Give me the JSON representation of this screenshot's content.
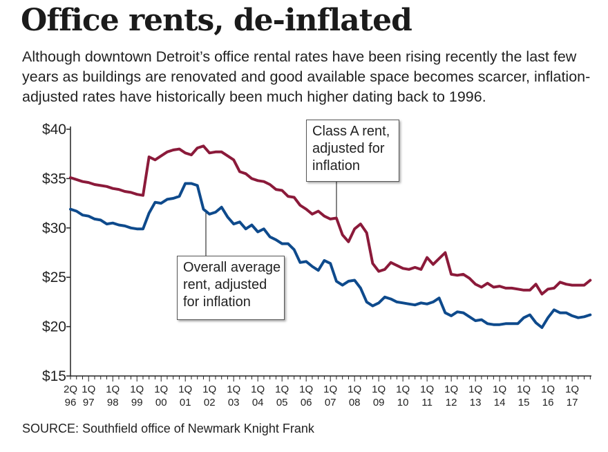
{
  "header": {
    "title": "Office rents, de-inflated",
    "subtitle": "Although downtown Detroit’s office rental rates have been rising recently the last few years as buildings are renovated and good available space becomes scarcer, inflation-adjusted rates have historically been much higher dating back to 1996."
  },
  "footer": {
    "source": "SOURCE: Southfield office of Newmark Knight Frank"
  },
  "annotations": {
    "class_a": [
      "Class A rent,",
      "adjusted for",
      "inflation"
    ],
    "overall": [
      "Overall average",
      "rent, adjusted",
      "for inflation"
    ]
  },
  "chart_data": {
    "type": "line",
    "title": "Office rents, de-inflated",
    "ylim": [
      15,
      40
    ],
    "y_ticks": [
      15,
      20,
      25,
      30,
      35,
      40
    ],
    "y_tick_labels": [
      "$15",
      "$20",
      "$25",
      "$30",
      "$35",
      "$40"
    ],
    "x_range": [
      1996.25,
      2017.0
    ],
    "x_ticks": [
      {
        "x": 1996.25,
        "top": "2Q",
        "bottom": "96"
      },
      {
        "x": 1997,
        "top": "1Q",
        "bottom": "97"
      },
      {
        "x": 1998,
        "top": "1Q",
        "bottom": "98"
      },
      {
        "x": 1999,
        "top": "1Q",
        "bottom": "99"
      },
      {
        "x": 2000,
        "top": "1Q",
        "bottom": "00"
      },
      {
        "x": 2001,
        "top": "1Q",
        "bottom": "01"
      },
      {
        "x": 2002,
        "top": "1Q",
        "bottom": "02"
      },
      {
        "x": 2003,
        "top": "1Q",
        "bottom": "03"
      },
      {
        "x": 2004,
        "top": "1Q",
        "bottom": "04"
      },
      {
        "x": 2005,
        "top": "1Q",
        "bottom": "05"
      },
      {
        "x": 2006,
        "top": "1Q",
        "bottom": "06"
      },
      {
        "x": 2007,
        "top": "1Q",
        "bottom": "07"
      },
      {
        "x": 2008,
        "top": "1Q",
        "bottom": "08"
      },
      {
        "x": 2009,
        "top": "1Q",
        "bottom": "09"
      },
      {
        "x": 2010,
        "top": "1Q",
        "bottom": "10"
      },
      {
        "x": 2011,
        "top": "1Q",
        "bottom": "11"
      },
      {
        "x": 2012,
        "top": "1Q",
        "bottom": "12"
      },
      {
        "x": 2013,
        "top": "1Q",
        "bottom": "13"
      },
      {
        "x": 2014,
        "top": "1Q",
        "bottom": "14"
      },
      {
        "x": 2015,
        "top": "1Q",
        "bottom": "15"
      },
      {
        "x": 2016,
        "top": "1Q",
        "bottom": "16"
      },
      {
        "x": 2017,
        "top": "1Q",
        "bottom": "17"
      }
    ],
    "grid": false,
    "legend": "none",
    "series": [
      {
        "color": "#8b1a3a",
        "points": [
          [
            1996.25,
            35.1
          ],
          [
            1996.5,
            34.9
          ],
          [
            1996.75,
            34.7
          ],
          [
            1997.0,
            34.6
          ],
          [
            1997.25,
            34.4
          ],
          [
            1997.5,
            34.3
          ],
          [
            1997.75,
            34.2
          ],
          [
            1998.0,
            34.0
          ],
          [
            1998.25,
            33.9
          ],
          [
            1998.5,
            33.7
          ],
          [
            1998.75,
            33.6
          ],
          [
            1999.0,
            33.4
          ],
          [
            1999.25,
            33.3
          ],
          [
            1999.5,
            37.2
          ],
          [
            1999.75,
            36.9
          ],
          [
            2000.0,
            37.3
          ],
          [
            2000.25,
            37.7
          ],
          [
            2000.5,
            37.9
          ],
          [
            2000.75,
            38.0
          ],
          [
            2001.0,
            37.6
          ],
          [
            2001.25,
            37.4
          ],
          [
            2001.5,
            38.1
          ],
          [
            2001.75,
            38.3
          ],
          [
            2002.0,
            37.6
          ],
          [
            2002.25,
            37.7
          ],
          [
            2002.5,
            37.7
          ],
          [
            2002.75,
            37.3
          ],
          [
            2003.0,
            36.9
          ],
          [
            2003.25,
            35.7
          ],
          [
            2003.5,
            35.5
          ],
          [
            2003.75,
            35.0
          ],
          [
            2004.0,
            34.8
          ],
          [
            2004.25,
            34.7
          ],
          [
            2004.5,
            34.4
          ],
          [
            2004.75,
            33.9
          ],
          [
            2005.0,
            33.8
          ],
          [
            2005.25,
            33.2
          ],
          [
            2005.5,
            33.1
          ],
          [
            2005.75,
            32.3
          ],
          [
            2006.0,
            31.9
          ],
          [
            2006.25,
            31.4
          ],
          [
            2006.5,
            31.7
          ],
          [
            2006.75,
            31.2
          ],
          [
            2007.0,
            30.9
          ],
          [
            2007.25,
            31.0
          ],
          [
            2007.5,
            29.3
          ],
          [
            2007.75,
            28.6
          ],
          [
            2008.0,
            29.9
          ],
          [
            2008.25,
            30.4
          ],
          [
            2008.5,
            29.5
          ],
          [
            2008.75,
            26.4
          ],
          [
            2009.0,
            25.6
          ],
          [
            2009.25,
            25.8
          ],
          [
            2009.5,
            26.5
          ],
          [
            2009.75,
            26.2
          ],
          [
            2010.0,
            25.9
          ],
          [
            2010.25,
            25.8
          ],
          [
            2010.5,
            26.0
          ],
          [
            2010.75,
            25.8
          ],
          [
            2011.0,
            27.0
          ],
          [
            2011.25,
            26.3
          ],
          [
            2011.5,
            26.9
          ],
          [
            2011.75,
            27.5
          ],
          [
            2012.0,
            25.3
          ],
          [
            2012.25,
            25.2
          ],
          [
            2012.5,
            25.3
          ],
          [
            2012.75,
            24.9
          ],
          [
            2013.0,
            24.3
          ],
          [
            2013.25,
            24.0
          ],
          [
            2013.5,
            24.4
          ],
          [
            2013.75,
            24.0
          ],
          [
            2014.0,
            24.1
          ],
          [
            2014.25,
            23.9
          ],
          [
            2014.5,
            23.9
          ],
          [
            2014.75,
            23.8
          ],
          [
            2015.0,
            23.7
          ],
          [
            2015.25,
            23.7
          ],
          [
            2015.5,
            24.3
          ],
          [
            2015.75,
            23.3
          ],
          [
            2016.0,
            23.8
          ],
          [
            2016.25,
            23.9
          ],
          [
            2016.5,
            24.5
          ],
          [
            2016.75,
            24.3
          ],
          [
            2017.0,
            24.2
          ],
          [
            2017.25,
            24.2
          ],
          [
            2017.5,
            24.2
          ],
          [
            2017.75,
            24.7
          ]
        ]
      },
      {
        "color": "#0e4a8c",
        "points": [
          [
            1996.25,
            31.9
          ],
          [
            1996.5,
            31.7
          ],
          [
            1996.75,
            31.3
          ],
          [
            1997.0,
            31.2
          ],
          [
            1997.25,
            30.9
          ],
          [
            1997.5,
            30.8
          ],
          [
            1997.75,
            30.4
          ],
          [
            1998.0,
            30.5
          ],
          [
            1998.25,
            30.3
          ],
          [
            1998.5,
            30.2
          ],
          [
            1998.75,
            30.0
          ],
          [
            1999.0,
            29.9
          ],
          [
            1999.25,
            29.9
          ],
          [
            1999.5,
            31.5
          ],
          [
            1999.75,
            32.6
          ],
          [
            2000.0,
            32.5
          ],
          [
            2000.25,
            32.9
          ],
          [
            2000.5,
            33.0
          ],
          [
            2000.75,
            33.2
          ],
          [
            2001.0,
            34.5
          ],
          [
            2001.25,
            34.5
          ],
          [
            2001.5,
            34.3
          ],
          [
            2001.75,
            31.9
          ],
          [
            2002.0,
            31.4
          ],
          [
            2002.25,
            31.6
          ],
          [
            2002.5,
            32.1
          ],
          [
            2002.75,
            31.1
          ],
          [
            2003.0,
            30.4
          ],
          [
            2003.25,
            30.6
          ],
          [
            2003.5,
            29.9
          ],
          [
            2003.75,
            30.3
          ],
          [
            2004.0,
            29.6
          ],
          [
            2004.25,
            29.9
          ],
          [
            2004.5,
            29.1
          ],
          [
            2004.75,
            28.8
          ],
          [
            2005.0,
            28.4
          ],
          [
            2005.25,
            28.4
          ],
          [
            2005.5,
            27.8
          ],
          [
            2005.75,
            26.5
          ],
          [
            2006.0,
            26.6
          ],
          [
            2006.25,
            26.1
          ],
          [
            2006.5,
            25.7
          ],
          [
            2006.75,
            26.7
          ],
          [
            2007.0,
            26.4
          ],
          [
            2007.25,
            24.6
          ],
          [
            2007.5,
            24.2
          ],
          [
            2007.75,
            24.6
          ],
          [
            2008.0,
            24.7
          ],
          [
            2008.25,
            23.9
          ],
          [
            2008.5,
            22.5
          ],
          [
            2008.75,
            22.1
          ],
          [
            2009.0,
            22.4
          ],
          [
            2009.25,
            23.0
          ],
          [
            2009.5,
            22.8
          ],
          [
            2009.75,
            22.5
          ],
          [
            2010.0,
            22.4
          ],
          [
            2010.25,
            22.3
          ],
          [
            2010.5,
            22.2
          ],
          [
            2010.75,
            22.4
          ],
          [
            2011.0,
            22.3
          ],
          [
            2011.25,
            22.5
          ],
          [
            2011.5,
            22.9
          ],
          [
            2011.75,
            21.4
          ],
          [
            2012.0,
            21.1
          ],
          [
            2012.25,
            21.5
          ],
          [
            2012.5,
            21.4
          ],
          [
            2012.75,
            21.0
          ],
          [
            2013.0,
            20.6
          ],
          [
            2013.25,
            20.7
          ],
          [
            2013.5,
            20.3
          ],
          [
            2013.75,
            20.2
          ],
          [
            2014.0,
            20.2
          ],
          [
            2014.25,
            20.3
          ],
          [
            2014.5,
            20.3
          ],
          [
            2014.75,
            20.3
          ],
          [
            2015.0,
            20.9
          ],
          [
            2015.25,
            21.2
          ],
          [
            2015.5,
            20.4
          ],
          [
            2015.75,
            19.9
          ],
          [
            2016.0,
            20.9
          ],
          [
            2016.25,
            21.7
          ],
          [
            2016.5,
            21.4
          ],
          [
            2016.75,
            21.4
          ],
          [
            2017.0,
            21.1
          ],
          [
            2017.25,
            20.9
          ],
          [
            2017.5,
            21.0
          ],
          [
            2017.75,
            21.2
          ]
        ]
      }
    ]
  }
}
